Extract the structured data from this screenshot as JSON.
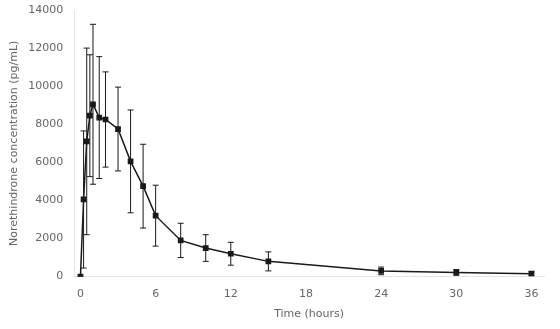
{
  "chart_data": {
    "type": "line",
    "x": [
      0,
      0.25,
      0.5,
      0.75,
      1.0,
      1.5,
      2.0,
      3.0,
      4.0,
      5.0,
      6.0,
      8.0,
      10.0,
      12.0,
      15.0,
      24.0,
      30.0,
      36.0
    ],
    "values": [
      0,
      4050,
      7100,
      8450,
      9050,
      8350,
      8250,
      7750,
      6050,
      4750,
      3200,
      1900,
      1500,
      1200,
      800,
      300,
      220,
      150
    ],
    "errors": [
      0,
      3600,
      4900,
      3200,
      4200,
      3200,
      2500,
      2200,
      2700,
      2200,
      1600,
      900,
      700,
      600,
      500,
      200,
      150,
      100
    ],
    "color": "#1a1a1a",
    "marker": "square",
    "xlabel": "Time (hours)",
    "ylabel": "Norethindrone concentration (pg/mL)",
    "xlim": [
      -0.5,
      37
    ],
    "ylim": [
      0,
      14000
    ],
    "xticks": [
      0,
      6,
      12,
      18,
      24,
      30,
      36
    ],
    "yticks": [
      0,
      2000,
      4000,
      6000,
      8000,
      10000,
      12000,
      14000
    ],
    "grid": false
  }
}
